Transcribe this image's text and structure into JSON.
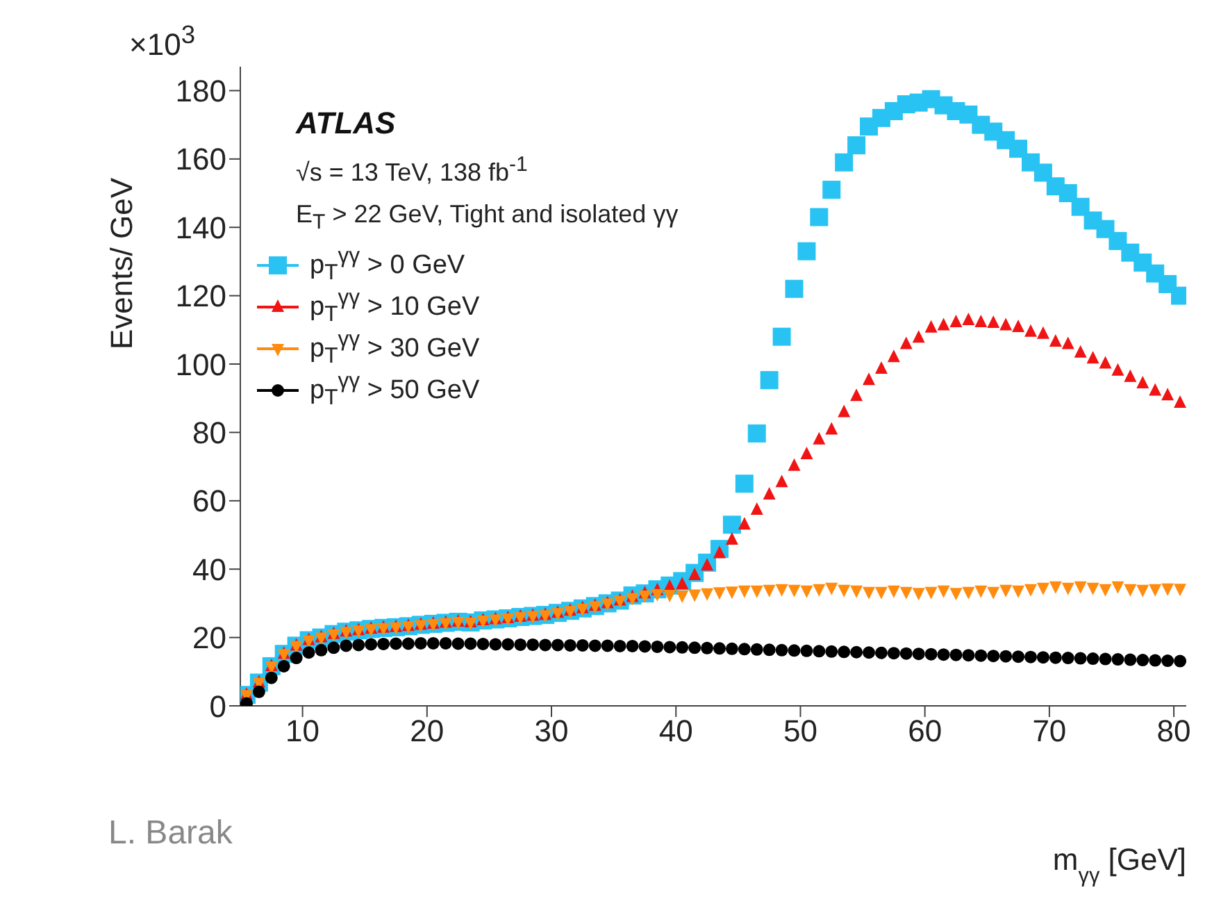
{
  "chart_data": {
    "type": "scatter",
    "xlabel": "m$_{γγ}$ [GeV]",
    "ylabel": "Events/ GeV",
    "annotations": [
      "×10$^{3}$",
      "ATLAS",
      "√s = 13 TeV, 138 fb$^{-1}$",
      "E$_{T}$ > 22 GeV, Tight and isolated γγ",
      "L. Barak"
    ],
    "x": [
      5.5,
      6.5,
      7.5,
      8.5,
      9.5,
      10.5,
      11.5,
      12.5,
      13.5,
      14.5,
      15.5,
      16.5,
      17.5,
      18.5,
      19.5,
      20.5,
      21.5,
      22.5,
      23.5,
      24.5,
      25.5,
      26.5,
      27.5,
      28.5,
      29.5,
      30.5,
      31.5,
      32.5,
      33.5,
      34.5,
      35.5,
      36.5,
      37.5,
      38.5,
      39.5,
      40.5,
      41.5,
      42.5,
      43.5,
      44.5,
      45.5,
      46.5,
      47.5,
      48.5,
      49.5,
      50.5,
      51.5,
      52.5,
      53.5,
      54.5,
      55.5,
      56.5,
      57.5,
      58.5,
      59.5,
      60.5,
      61.5,
      62.5,
      63.5,
      64.5,
      65.5,
      66.5,
      67.5,
      68.5,
      69.5,
      70.5,
      71.5,
      72.5,
      73.5,
      74.5,
      75.5,
      76.5,
      77.5,
      78.5,
      79.5,
      80.5
    ],
    "series": [
      {
        "name": "p$_{T}$$^{γγ}$ > 0 GeV",
        "color": "#29c3f3",
        "marker": "square",
        "values": [
          3.2,
          6.8,
          11.6,
          15.2,
          17.6,
          19.2,
          20,
          21,
          21.7,
          22.1,
          22.5,
          22.8,
          23,
          23.3,
          23.7,
          24,
          24.3,
          24.6,
          24.4,
          25,
          25.3,
          25.6,
          26,
          26.3,
          26.6,
          27.2,
          27.8,
          28.5,
          29.2,
          30,
          30.8,
          32.3,
          32.9,
          34.1,
          35.2,
          36.5,
          38.9,
          41.9,
          45.9,
          53,
          65,
          79.7,
          95.3,
          108,
          122,
          133,
          143,
          151,
          159,
          164,
          169.5,
          172,
          174,
          176,
          176.5,
          177.5,
          175.7,
          174,
          173,
          170,
          168,
          165.5,
          163,
          159,
          156,
          152,
          150,
          146,
          142,
          139.5,
          136,
          132.6,
          129.7,
          126.5,
          123.4,
          120
        ]
      },
      {
        "name": "p$_{T}$$^{γγ}$ > 10 GeV",
        "color": "#f01414",
        "marker": "triangle",
        "values": [
          3.2,
          6.8,
          11.6,
          15.2,
          17.6,
          19.2,
          20,
          21,
          21.7,
          22.1,
          22.5,
          22.8,
          23,
          23.3,
          23.7,
          24,
          24.3,
          24.6,
          24.4,
          25,
          25.3,
          25.6,
          26,
          26.3,
          26.6,
          27.2,
          27.8,
          28.5,
          29.2,
          30,
          30.8,
          31.8,
          32.9,
          33.8,
          34.8,
          35.5,
          38.2,
          41,
          44.6,
          48.6,
          53,
          57.3,
          61.8,
          65.4,
          70.2,
          73.6,
          77.9,
          80.8,
          85.9,
          90.6,
          95.3,
          98.6,
          102,
          105.8,
          107.7,
          110.6,
          111.3,
          112.2,
          112.8,
          112.2,
          112,
          111.3,
          110.8,
          109.4,
          108.8,
          106.5,
          105.8,
          103.3,
          101.6,
          100.1,
          98,
          96.2,
          94.3,
          92.2,
          90.8,
          88.6
        ]
      },
      {
        "name": "p$_{T}$$^{γγ}$ > 30 GeV",
        "color": "#ff8c0f",
        "marker": "triangle-down",
        "values": [
          3.2,
          6.8,
          11.6,
          15.2,
          17.6,
          19.2,
          20,
          21,
          21.7,
          22.1,
          22.5,
          22.8,
          23,
          23.3,
          23.7,
          24,
          24.3,
          24.6,
          24.4,
          25,
          25.3,
          25.6,
          26,
          26.3,
          26.6,
          27.2,
          27.8,
          28.5,
          29.2,
          30,
          30.8,
          31.6,
          32.3,
          32.8,
          32.5,
          32.3,
          32.6,
          33,
          33.3,
          33.5,
          33.8,
          33.8,
          34,
          34.2,
          34,
          33.8,
          34.2,
          34.6,
          34,
          33.8,
          33.4,
          33.4,
          33.8,
          33.4,
          33.1,
          33.4,
          33.8,
          33.1,
          33.4,
          33.8,
          33.4,
          34,
          33.8,
          34.2,
          34.6,
          35,
          34.6,
          35,
          34.6,
          34.2,
          35,
          34.2,
          34,
          34.2,
          34.4,
          34.3
        ]
      },
      {
        "name": "p$_{T}$$^{γγ}$ > 50 GeV",
        "color": "#000000",
        "marker": "circle",
        "values": [
          0.7,
          4.1,
          8.2,
          11.6,
          14,
          15.6,
          16.3,
          17,
          17.6,
          17.8,
          18,
          18.1,
          18.2,
          18.2,
          18.3,
          18.3,
          18.3,
          18.2,
          18.2,
          18.1,
          18,
          18,
          17.9,
          17.9,
          17.8,
          17.8,
          17.7,
          17.7,
          17.6,
          17.6,
          17.5,
          17.5,
          17.4,
          17.3,
          17.2,
          17.1,
          17,
          16.9,
          16.8,
          16.7,
          16.6,
          16.5,
          16.4,
          16.3,
          16.2,
          16.1,
          16,
          15.9,
          15.8,
          15.7,
          15.6,
          15.5,
          15.4,
          15.3,
          15.2,
          15.1,
          15,
          14.9,
          14.8,
          14.7,
          14.6,
          14.5,
          14.4,
          14.3,
          14.2,
          14.1,
          14,
          13.9,
          13.8,
          13.7,
          13.6,
          13.5,
          13.4,
          13.3,
          13.2,
          13.1
        ]
      }
    ],
    "xlim": [
      5,
      81
    ],
    "xticks": [
      10,
      20,
      30,
      40,
      50,
      60,
      70,
      80
    ],
    "ylim": [
      0,
      187
    ],
    "yticks": [
      0,
      20,
      40,
      60,
      80,
      100,
      120,
      140,
      160,
      180
    ],
    "grid": false,
    "legend": "top left"
  }
}
